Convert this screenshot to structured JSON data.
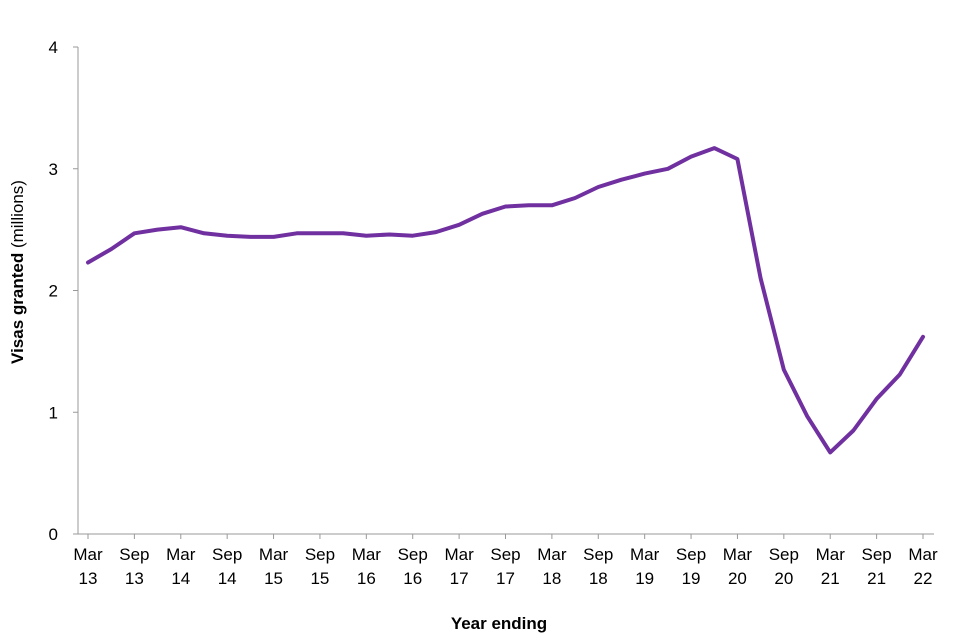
{
  "chart_data": {
    "type": "line",
    "xlabel": "Year ending",
    "ylabel_main": "Visas granted",
    "ylabel_unit": "(millions)",
    "ylim": [
      0,
      4
    ],
    "y_ticks": [
      "0",
      "1",
      "2",
      "3",
      "4"
    ],
    "grid": false,
    "line_color": "#7030A0",
    "x_tick_labels": [
      {
        "top": "Mar",
        "bottom": "13"
      },
      {
        "top": "Sep",
        "bottom": "13"
      },
      {
        "top": "Mar",
        "bottom": "14"
      },
      {
        "top": "Sep",
        "bottom": "14"
      },
      {
        "top": "Mar",
        "bottom": "15"
      },
      {
        "top": "Sep",
        "bottom": "15"
      },
      {
        "top": "Mar",
        "bottom": "16"
      },
      {
        "top": "Sep",
        "bottom": "16"
      },
      {
        "top": "Mar",
        "bottom": "17"
      },
      {
        "top": "Sep",
        "bottom": "17"
      },
      {
        "top": "Mar",
        "bottom": "18"
      },
      {
        "top": "Sep",
        "bottom": "18"
      },
      {
        "top": "Mar",
        "bottom": "19"
      },
      {
        "top": "Sep",
        "bottom": "19"
      },
      {
        "top": "Mar",
        "bottom": "20"
      },
      {
        "top": "Sep",
        "bottom": "20"
      },
      {
        "top": "Mar",
        "bottom": "21"
      },
      {
        "top": "Sep",
        "bottom": "21"
      },
      {
        "top": "Mar",
        "bottom": "22"
      }
    ],
    "series": [
      {
        "x": [
          "Mar 13",
          "Jun 13",
          "Sep 13",
          "Dec 13",
          "Mar 14",
          "Jun 14",
          "Sep 14",
          "Dec 14",
          "Mar 15",
          "Jun 15",
          "Sep 15",
          "Dec 15",
          "Mar 16",
          "Jun 16",
          "Sep 16",
          "Dec 16",
          "Mar 17",
          "Jun 17",
          "Sep 17",
          "Dec 17",
          "Mar 18",
          "Jun 18",
          "Sep 18",
          "Dec 18",
          "Mar 19",
          "Jun 19",
          "Sep 19",
          "Dec 19",
          "Mar 20",
          "Jun 20",
          "Sep 20",
          "Dec 20",
          "Mar 21",
          "Jun 21",
          "Sep 21",
          "Dec 21",
          "Mar 22"
        ],
        "values": [
          2.23,
          2.34,
          2.47,
          2.5,
          2.52,
          2.47,
          2.45,
          2.44,
          2.44,
          2.47,
          2.47,
          2.47,
          2.45,
          2.46,
          2.45,
          2.48,
          2.54,
          2.63,
          2.69,
          2.7,
          2.7,
          2.76,
          2.85,
          2.91,
          2.96,
          3.0,
          3.1,
          3.17,
          3.08,
          2.1,
          1.35,
          0.97,
          0.67,
          0.85,
          1.11,
          1.31,
          1.62
        ]
      }
    ]
  }
}
